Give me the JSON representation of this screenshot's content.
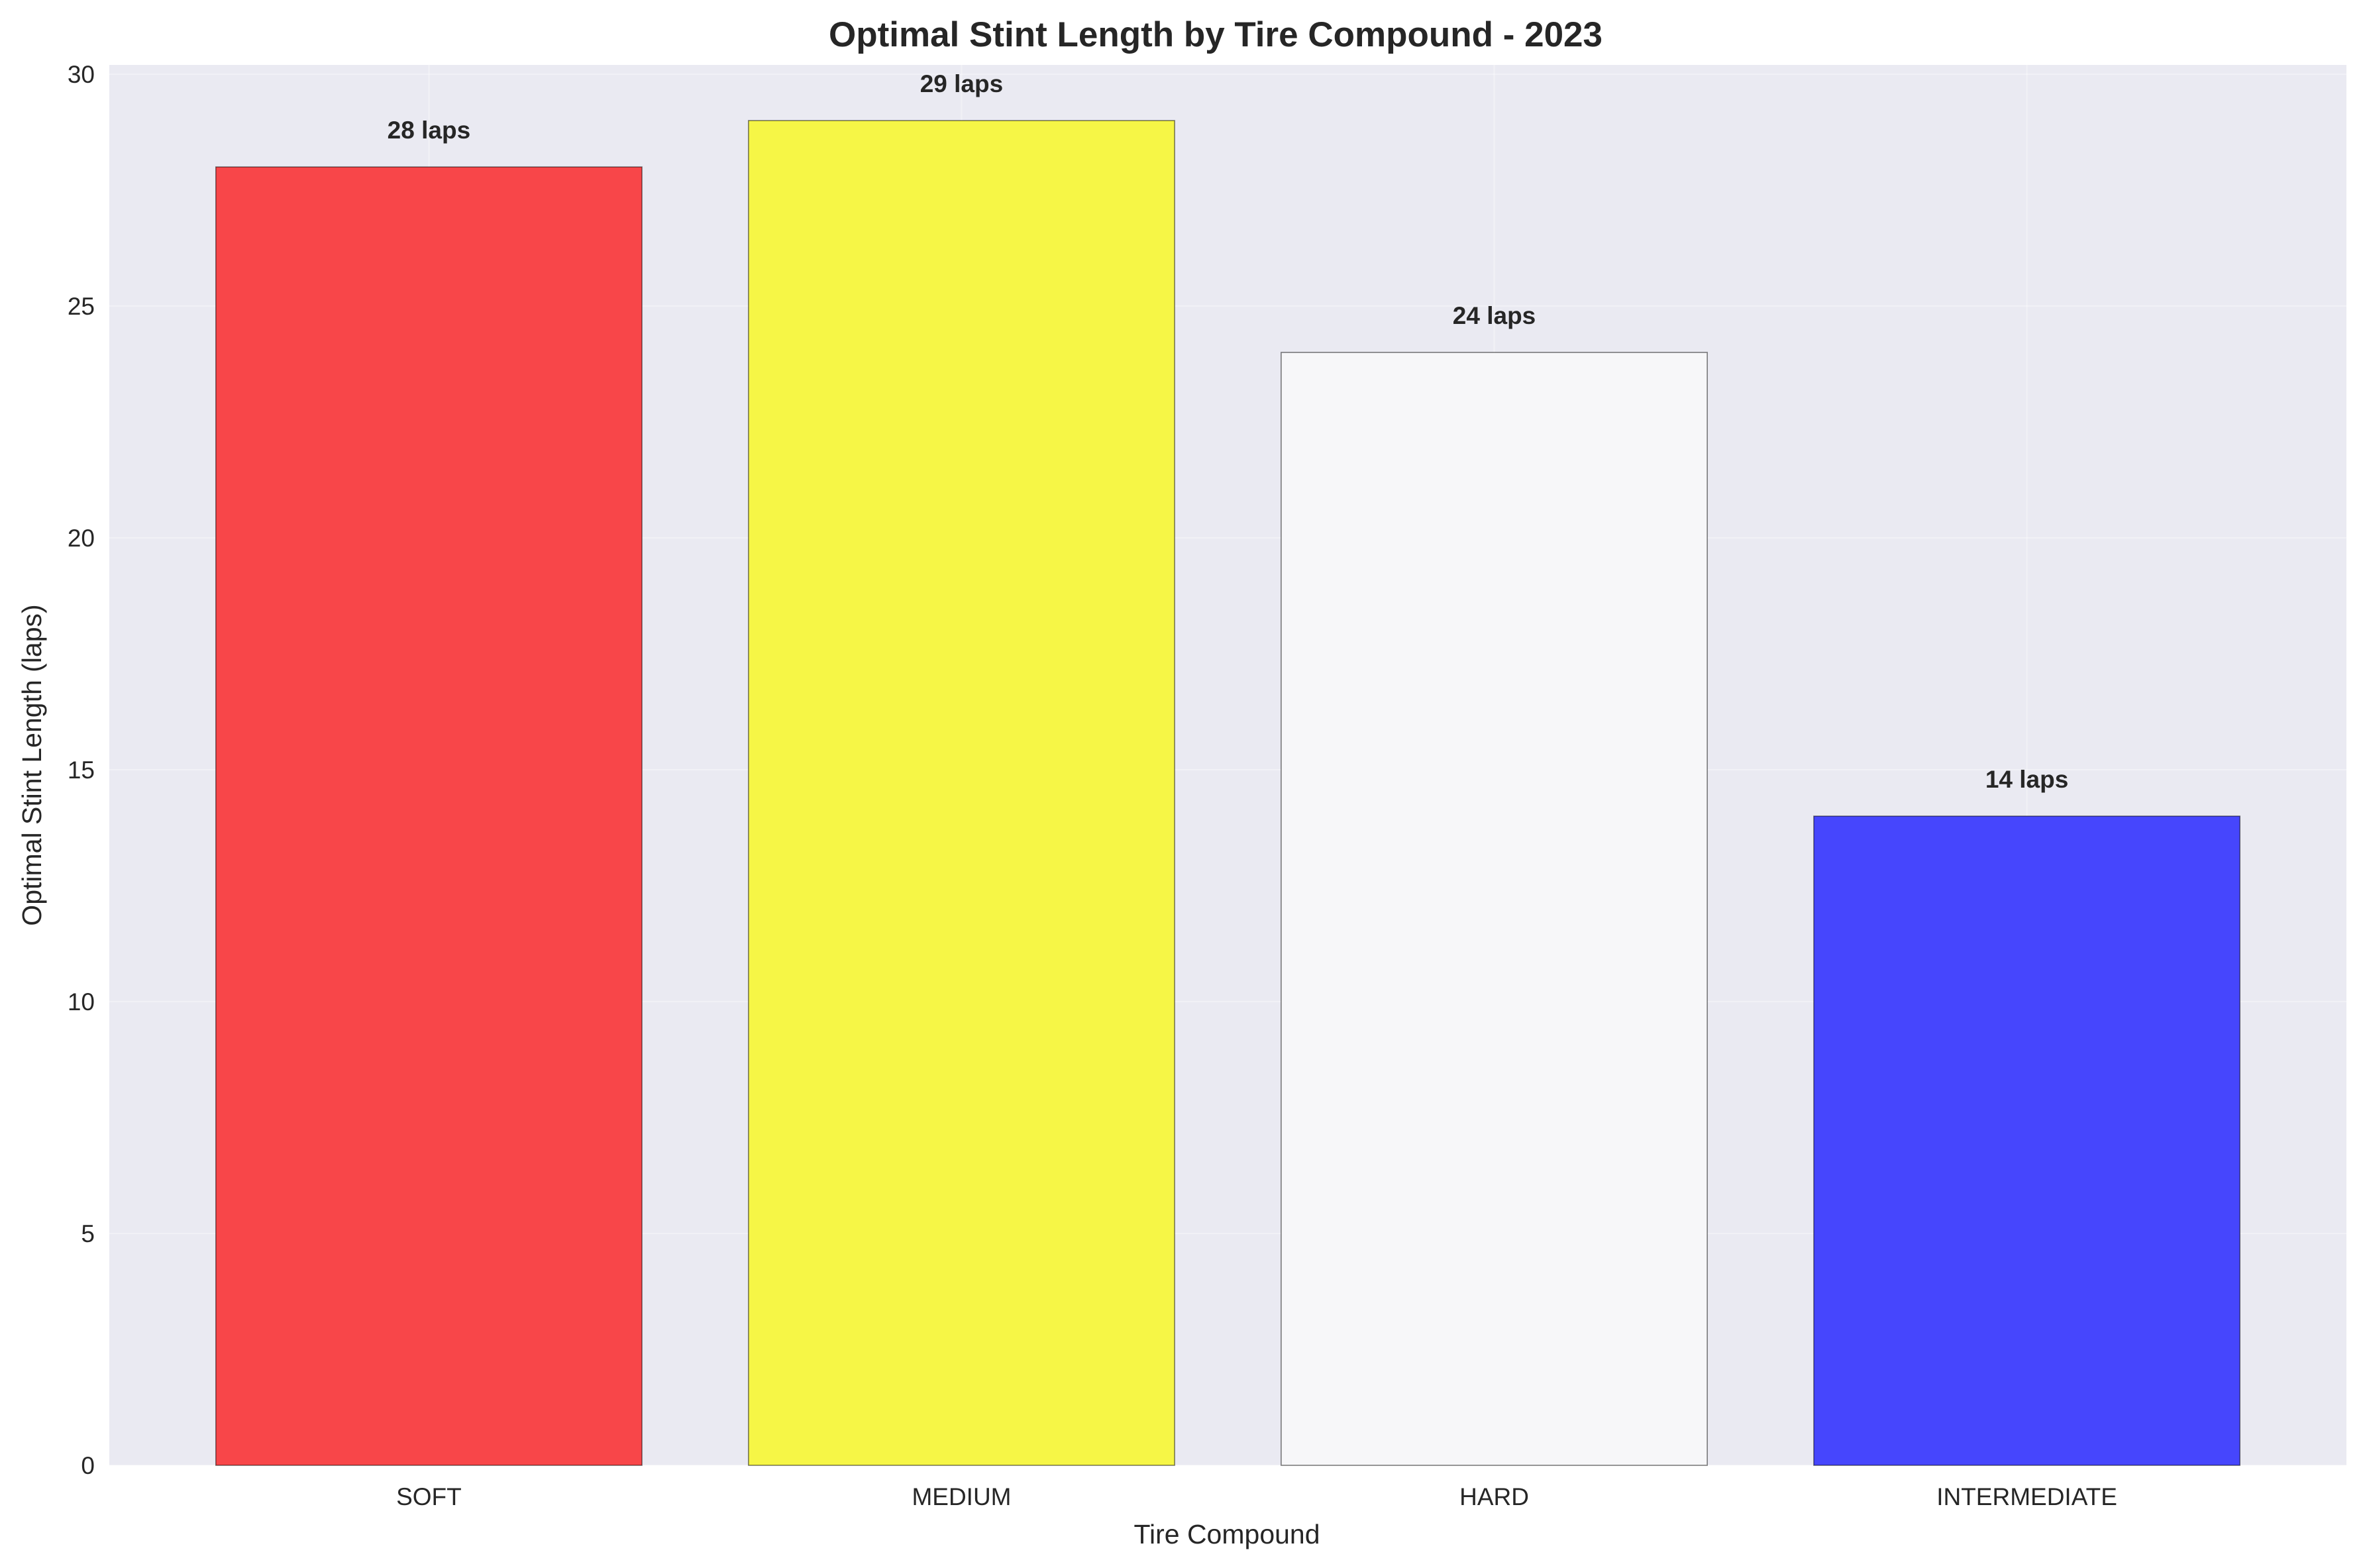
{
  "chart_data": {
    "type": "bar",
    "title": "Optimal Stint Length by Tire Compound - 2023",
    "xlabel": "Tire Compound",
    "ylabel": "Optimal Stint Length (laps)",
    "categories": [
      "SOFT",
      "MEDIUM",
      "HARD",
      "INTERMEDIATE"
    ],
    "values": [
      28,
      29,
      24,
      14
    ],
    "value_labels": [
      "28 laps",
      "29 laps",
      "24 laps",
      "14 laps"
    ],
    "colors": [
      "#f84649",
      "#f6f646",
      "#f7f7f9",
      "#4646fd"
    ],
    "ylim": [
      0,
      30.2
    ],
    "yticks": [
      0,
      5,
      10,
      15,
      20,
      25,
      30
    ],
    "grid": true,
    "plot_background": "#eaeaf2"
  }
}
